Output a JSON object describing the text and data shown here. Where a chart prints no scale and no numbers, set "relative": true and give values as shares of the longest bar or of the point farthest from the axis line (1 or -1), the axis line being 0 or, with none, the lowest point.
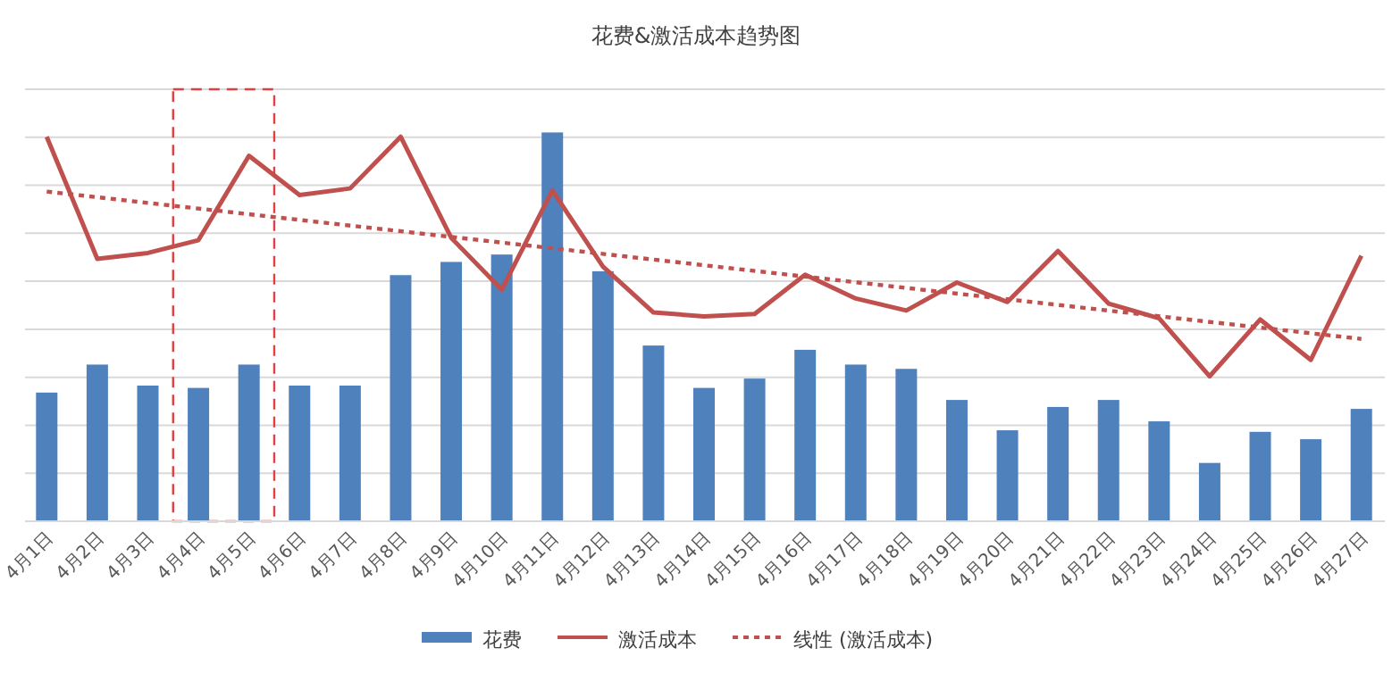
{
  "chart_data": {
    "type": "bar",
    "title": "花费&激活成本趋势图",
    "relative": true,
    "grid": "y",
    "legend": "bottom",
    "categories": [
      "4月1日",
      "4月2日",
      "4月3日",
      "4月4日",
      "4月5日",
      "4月6日",
      "4月7日",
      "4月8日",
      "4月9日",
      "4月10日",
      "4月11日",
      "4月12日",
      "4月13日",
      "4月14日",
      "4月15日",
      "4月16日",
      "4月17日",
      "4月18日",
      "4月19日",
      "4月20日",
      "4月21日",
      "4月22日",
      "4月23日",
      "4月24日",
      "4月25日",
      "4月26日",
      "4月27日"
    ],
    "series": [
      {
        "name": "花费",
        "color": "#4f81bd",
        "values": [
          0.331,
          0.403,
          0.349,
          0.343,
          0.403,
          0.349,
          0.349,
          0.633,
          0.667,
          0.686,
          1,
          0.643,
          0.452,
          0.343,
          0.367,
          0.441,
          0.403,
          0.392,
          0.312,
          0.234,
          0.294,
          0.312,
          0.257,
          0.15,
          0.23,
          0.211,
          0.289
        ]
      },
      {
        "name": "激活成本",
        "type": "line",
        "color": "#c0504d",
        "line_style": "solid",
        "values": [
          0.989,
          0.675,
          0.69,
          0.723,
          0.94,
          0.839,
          0.856,
          0.989,
          0.729,
          0.596,
          0.851,
          0.655,
          0.537,
          0.527,
          0.533,
          0.634,
          0.573,
          0.542,
          0.614,
          0.564,
          0.695,
          0.56,
          0.522,
          0.373,
          0.519,
          0.415,
          0.683
        ]
      },
      {
        "name": "线性 (激活成本)",
        "type": "line",
        "color": "#c0504d",
        "line_style": "dotted",
        "x": [
          "4月1日",
          "4月27日"
        ],
        "values": [
          0.848,
          0.469
        ]
      }
    ]
  }
}
